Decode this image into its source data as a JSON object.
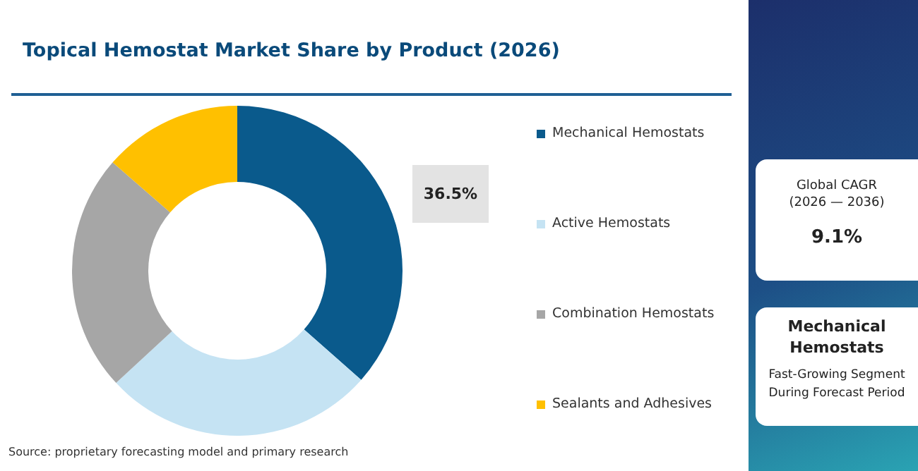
{
  "chart_data": {
    "type": "donut",
    "title": "Topical Hemostat Market Share by Product (2026)",
    "categories": [
      "Mechanical Hemostats",
      "Active Hemostats",
      "Combination Hemostats",
      "Sealants and Adhesives"
    ],
    "values": [
      36.5,
      26.6,
      23.3,
      13.6
    ],
    "colors": [
      "#0a5a8c",
      "#c5e3f3",
      "#a6a6a6",
      "#ffc000"
    ],
    "value_labels": [
      "36.5%",
      null,
      null,
      null
    ],
    "legend": "right",
    "annotations": [
      "Source: proprietary forecasting model and primary research",
      "Global CAGR",
      "(2026 — 2036)",
      "9.1%",
      "Mechanical Hemostats",
      "Fast-Growing Segment During Forecast Period"
    ]
  }
}
